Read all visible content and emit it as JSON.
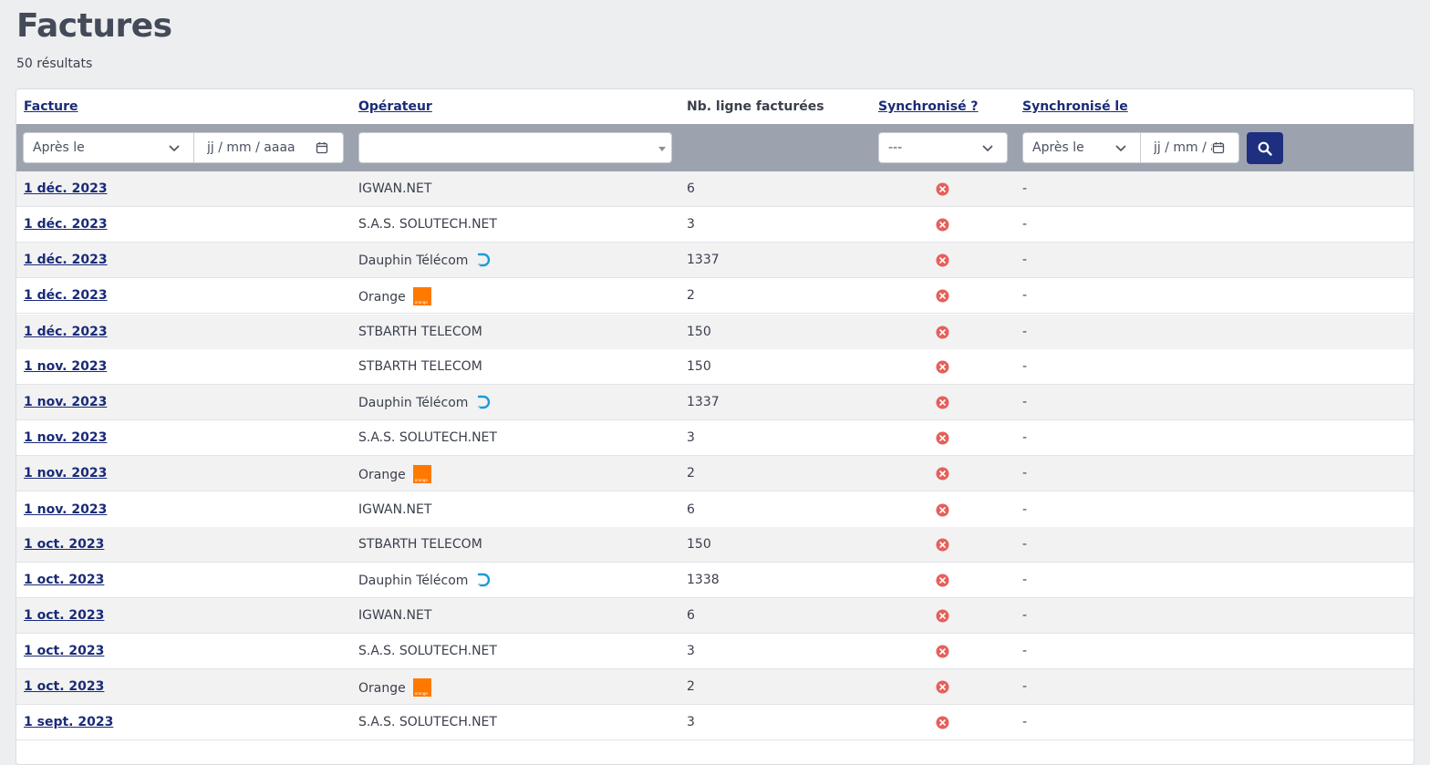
{
  "page": {
    "title": "Factures",
    "result_count": "50 résultats"
  },
  "table": {
    "columns": {
      "facture": "Facture",
      "operateur": "Opérateur",
      "nb_lignes": "Nb. ligne facturées",
      "synchronise": "Synchronisé ?",
      "synchronise_le": "Synchronisé le"
    },
    "filters": {
      "facture_mode": "Après le",
      "facture_date_placeholder": "jj / mm / aaaa",
      "operateur_value": "",
      "synchronise_value": "---",
      "synchronise_le_mode": "Après le",
      "synchronise_le_date_placeholder": "jj / mm / aaaa"
    },
    "status_color": "#e5605a",
    "rows": [
      {
        "date": "1 déc. 2023",
        "operateur": "IGWAN.NET",
        "logo": "",
        "nb": "6",
        "sync": "not-synced-icon",
        "sync_le": "-"
      },
      {
        "date": "1 déc. 2023",
        "operateur": "S.A.S. SOLUTECH.NET",
        "logo": "",
        "nb": "3",
        "sync": "not-synced-icon",
        "sync_le": "-"
      },
      {
        "date": "1 déc. 2023",
        "operateur": "Dauphin Télécom",
        "logo": "dauphin-logo-icon",
        "nb": "1337",
        "sync": "not-synced-icon",
        "sync_le": "-"
      },
      {
        "date": "1 déc. 2023",
        "operateur": "Orange",
        "logo": "orange-logo-icon",
        "nb": "2",
        "sync": "not-synced-icon",
        "sync_le": "-"
      },
      {
        "date": "1 déc. 2023",
        "operateur": "STBARTH TELECOM",
        "logo": "",
        "nb": "150",
        "sync": "not-synced-icon",
        "sync_le": "-"
      },
      {
        "date": "1 nov. 2023",
        "operateur": "STBARTH TELECOM",
        "logo": "",
        "nb": "150",
        "sync": "not-synced-icon",
        "sync_le": "-"
      },
      {
        "date": "1 nov. 2023",
        "operateur": "Dauphin Télécom",
        "logo": "dauphin-logo-icon",
        "nb": "1337",
        "sync": "not-synced-icon",
        "sync_le": "-"
      },
      {
        "date": "1 nov. 2023",
        "operateur": "S.A.S. SOLUTECH.NET",
        "logo": "",
        "nb": "3",
        "sync": "not-synced-icon",
        "sync_le": "-"
      },
      {
        "date": "1 nov. 2023",
        "operateur": "Orange",
        "logo": "orange-logo-icon",
        "nb": "2",
        "sync": "not-synced-icon",
        "sync_le": "-"
      },
      {
        "date": "1 nov. 2023",
        "operateur": "IGWAN.NET",
        "logo": "",
        "nb": "6",
        "sync": "not-synced-icon",
        "sync_le": "-"
      },
      {
        "date": "1 oct. 2023",
        "operateur": "STBARTH TELECOM",
        "logo": "",
        "nb": "150",
        "sync": "not-synced-icon",
        "sync_le": "-"
      },
      {
        "date": "1 oct. 2023",
        "operateur": "Dauphin Télécom",
        "logo": "dauphin-logo-icon",
        "nb": "1338",
        "sync": "not-synced-icon",
        "sync_le": "-"
      },
      {
        "date": "1 oct. 2023",
        "operateur": "IGWAN.NET",
        "logo": "",
        "nb": "6",
        "sync": "not-synced-icon",
        "sync_le": "-"
      },
      {
        "date": "1 oct. 2023",
        "operateur": "S.A.S. SOLUTECH.NET",
        "logo": "",
        "nb": "3",
        "sync": "not-synced-icon",
        "sync_le": "-"
      },
      {
        "date": "1 oct. 2023",
        "operateur": "Orange",
        "logo": "orange-logo-icon",
        "nb": "2",
        "sync": "not-synced-icon",
        "sync_le": "-"
      },
      {
        "date": "1 sept. 2023",
        "operateur": "S.A.S. SOLUTECH.NET",
        "logo": "",
        "nb": "3",
        "sync": "not-synced-icon",
        "sync_le": "-"
      }
    ]
  }
}
